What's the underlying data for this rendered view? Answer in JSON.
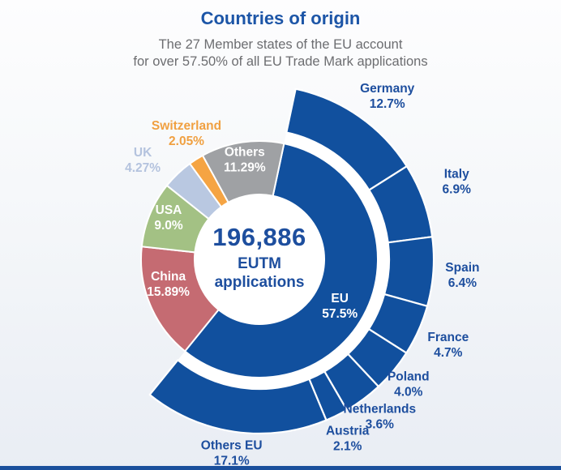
{
  "header": {
    "title": "Countries of origin",
    "subtitle_line1": "The 27 Member states of the EU account",
    "subtitle_line2": "for over 57.50% of all EU Trade Mark applications"
  },
  "chart_data": {
    "type": "pie",
    "subtype": "two-ring donut (sunburst)",
    "title": "Countries of origin",
    "center": {
      "total": "196,886",
      "line1": "EUTM",
      "line2": "applications"
    },
    "start_angle_deg": 12,
    "legend_position": "labels-on-chart",
    "inner_ring": {
      "description": "Share of all EUTM applications by origin",
      "segments": [
        {
          "label": "EU",
          "value": 57.5,
          "display": "57.5%",
          "color": "#11509e",
          "label_placement": "inside",
          "label_color": "#ffffff",
          "label_da": 4,
          "label_dr": 0
        },
        {
          "label": "China",
          "value": 15.89,
          "display": "15.89%",
          "color": "#c56b72",
          "label_placement": "inside",
          "label_color": "#ffffff",
          "label_da": 8,
          "label_dr": 2
        },
        {
          "label": "USA",
          "value": 9.0,
          "display": "9.0%",
          "color": "#a3c184",
          "label_placement": "inside",
          "label_color": "#ffffff",
          "label_da": 3,
          "label_dr": 10
        },
        {
          "label": "UK",
          "value": 4.27,
          "display": "4.27%",
          "color": "#b9c8e1",
          "label_placement": "outside",
          "label_color": "#b4c3de",
          "label_da": -5.5,
          "label_dr": 13
        },
        {
          "label": "Switzerland",
          "value": 2.05,
          "display": "2.05%",
          "color": "#f5a443",
          "label_placement": "outside",
          "label_color": "#f0a041",
          "label_da": 2.5,
          "label_dr": 4
        },
        {
          "label": "Others",
          "value": 11.29,
          "display": "11.29%",
          "color": "#9fa1a4",
          "label_placement": "inside",
          "label_color": "#ffffff",
          "label_da": 0,
          "label_dr": 12
        }
      ]
    },
    "outer_ring": {
      "description": "Breakdown of the EU share by member state",
      "color": "#11509e",
      "label_color": "#1d4e9e",
      "segments": [
        {
          "label": "Germany",
          "value": 12.7,
          "display": "12.7%",
          "label_da": 3,
          "label_dr": 6
        },
        {
          "label": "Italy",
          "value": 6.9,
          "display": "6.9%",
          "label_da": -2,
          "label_dr": 11
        },
        {
          "label": "Spain",
          "value": 6.4,
          "display": "6.4%",
          "label_da": 0,
          "label_dr": 0
        },
        {
          "label": "France",
          "value": 4.7,
          "display": "4.7%",
          "label_da": 0,
          "label_dr": 4
        },
        {
          "label": "Poland",
          "value": 4.0,
          "display": "4.0%",
          "label_da": 0,
          "label_dr": -12
        },
        {
          "label": "Netherlands",
          "value": 3.6,
          "display": "3.6%",
          "label_da": -1,
          "label_dr": -8
        },
        {
          "label": "Austria",
          "value": 2.1,
          "display": "2.1%",
          "label_da": 0,
          "label_dr": -6
        },
        {
          "label": "Others EU",
          "value": 17.1,
          "display": "17.1%",
          "label_da": 0,
          "label_dr": -11
        }
      ]
    }
  },
  "colors": {
    "title-blue": "#1c55a7",
    "subtitle-gray": "#6c6d70",
    "center-blue": "#1d4e9e",
    "eu-blue": "#11509e",
    "bottom-bar": "#1a4f9c"
  }
}
